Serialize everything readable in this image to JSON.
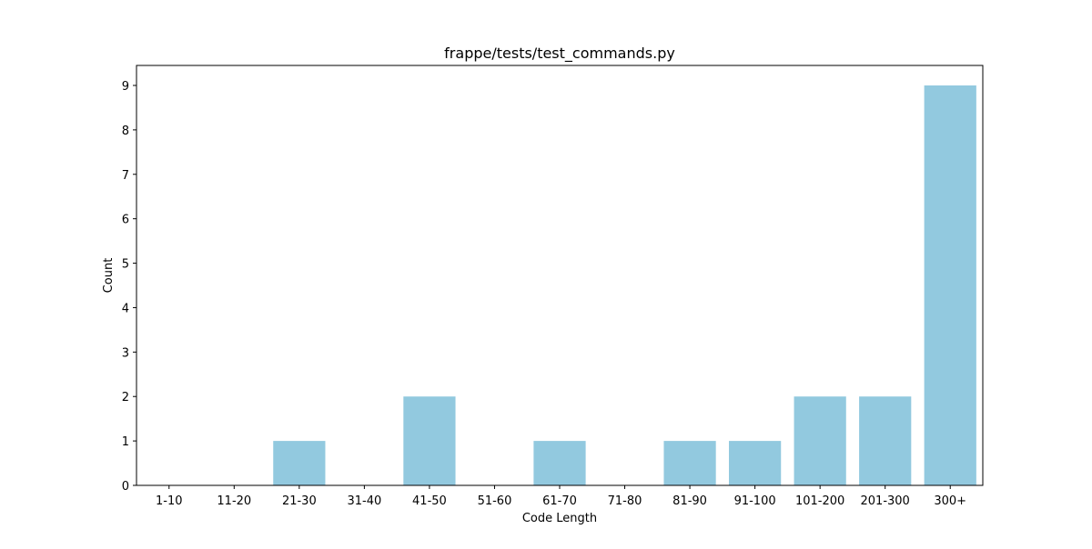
{
  "chart_data": {
    "type": "bar",
    "title": "frappe/tests/test_commands.py",
    "xlabel": "Code Length",
    "ylabel": "Count",
    "categories": [
      "1-10",
      "11-20",
      "21-30",
      "31-40",
      "41-50",
      "51-60",
      "61-70",
      "71-80",
      "81-90",
      "91-100",
      "101-200",
      "201-300",
      "300+"
    ],
    "values": [
      0,
      0,
      1,
      0,
      2,
      0,
      1,
      0,
      1,
      1,
      2,
      2,
      9
    ],
    "yticks": [
      0,
      1,
      2,
      3,
      4,
      5,
      6,
      7,
      8,
      9
    ],
    "ylim": [
      0,
      9.45
    ],
    "bar_color": "#92c9df",
    "grid": false,
    "legend": "none"
  }
}
